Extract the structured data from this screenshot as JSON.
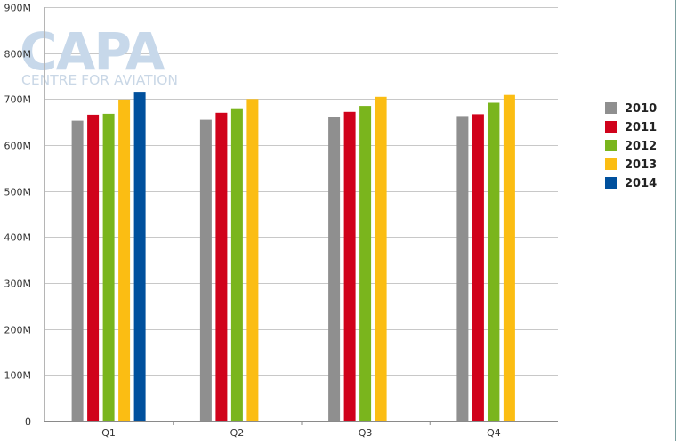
{
  "watermark": {
    "brand": "CAPA",
    "tagline": "CENTRE FOR AVIATION"
  },
  "chart_data": {
    "type": "bar",
    "title": "",
    "xlabel": "",
    "ylabel": "",
    "categories": [
      "Q1",
      "Q2",
      "Q3",
      "Q4"
    ],
    "ylim": [
      0,
      900
    ],
    "yticks": [
      "0",
      "100M",
      "200M",
      "300M",
      "400M",
      "500M",
      "600M",
      "700M",
      "800M",
      "900M"
    ],
    "grid": true,
    "legend_position": "right",
    "series": [
      {
        "name": "2010",
        "color": "#8f8f8f",
        "values": [
          653,
          655,
          661,
          663
        ]
      },
      {
        "name": "2011",
        "color": "#d0021b",
        "values": [
          666,
          670,
          672,
          667
        ]
      },
      {
        "name": "2012",
        "color": "#7ab51d",
        "values": [
          668,
          680,
          685,
          692
        ]
      },
      {
        "name": "2013",
        "color": "#fbbd13",
        "values": [
          699,
          700,
          705,
          709
        ]
      },
      {
        "name": "2014",
        "color": "#00509d",
        "values": [
          716,
          null,
          null,
          null
        ]
      }
    ]
  }
}
